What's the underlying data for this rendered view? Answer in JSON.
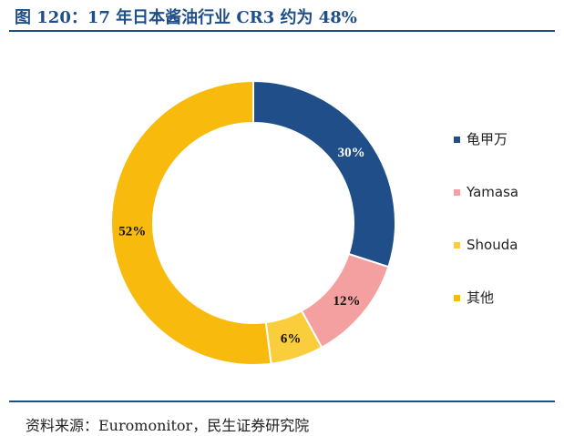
{
  "header": {
    "title": "图 120：17 年日本酱油行业 CR3 约为 48%"
  },
  "chart_data": {
    "type": "pie",
    "style": "donut",
    "title": "17 年日本酱油行业 CR3 约为 48%",
    "categories": [
      "龟甲万",
      "Yamasa",
      "Shouda",
      "其他"
    ],
    "values": [
      30,
      12,
      6,
      52
    ],
    "labels": [
      "30%",
      "12%",
      "6%",
      "52%"
    ],
    "unit": "%",
    "colors": [
      "#1f4e89",
      "#f4a0a0",
      "#f9cd3b",
      "#f8bb0d"
    ],
    "label_colors": [
      "#ffffff",
      "#111111",
      "#111111",
      "#111111"
    ],
    "legend_position": "right"
  },
  "footer": {
    "source": "资料来源：Euromonitor，民生证券研究院"
  }
}
